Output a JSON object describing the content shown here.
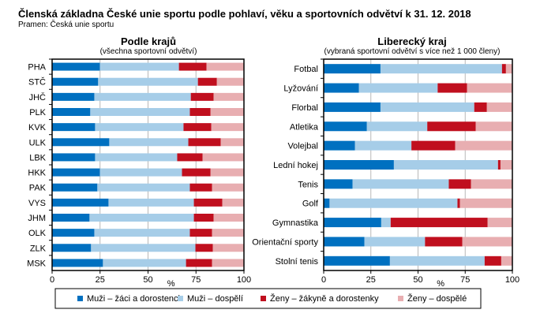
{
  "title": "Členská základna České unie sportu podle pohlaví, věku a sportovních odvětví k 31. 12. 2018",
  "source": "Pramen: Česká unie sportu",
  "colors": {
    "muzi_zaci": "#0070c0",
    "muzi_dospeli": "#a6cde8",
    "zeny_zakyne": "#c00f1e",
    "zeny_dospele": "#e8aeb1"
  },
  "legend": [
    "Muži – žáci a dorostenci",
    "Muži – dospělí",
    "Ženy – žákyně a dorostenky",
    "Ženy – dospělé"
  ],
  "chart_data": [
    {
      "type": "bar",
      "stacked": true,
      "orientation": "horizontal",
      "title": "Podle krajů",
      "subtitle": "(všechna sportovní odvětví)",
      "xlabel": "%",
      "xlim": [
        0,
        100
      ],
      "xticks": [
        "0",
        "25",
        "50",
        "75",
        "100"
      ],
      "grid": true,
      "categories": [
        "PHA",
        "STČ",
        "JHČ",
        "PLK",
        "KVK",
        "ULK",
        "LBK",
        "HKK",
        "PAK",
        "VYS",
        "JHM",
        "OLK",
        "ZLK",
        "MSK"
      ],
      "series": [
        {
          "name": "Muži – žáci a dorostenci",
          "values": [
            24.9,
            24.0,
            22.0,
            19.9,
            22.4,
            29.8,
            22.4,
            24.9,
            23.6,
            29.4,
            19.5,
            22.0,
            20.3,
            26.5
          ]
        },
        {
          "name": "Muži – dospělí",
          "values": [
            41.2,
            52.0,
            50.3,
            51.9,
            46.1,
            41.2,
            42.8,
            42.8,
            48.2,
            44.5,
            54.4,
            49.8,
            54.4,
            43.3
          ]
        },
        {
          "name": "Ženy – žákyně a dorostenky",
          "values": [
            14.4,
            9.9,
            11.9,
            10.8,
            14.5,
            16.9,
            13.2,
            14.9,
            11.6,
            14.8,
            10.3,
            11.6,
            9.1,
            13.6
          ]
        },
        {
          "name": "Ženy – dospělé",
          "values": [
            19.5,
            14.1,
            15.8,
            17.4,
            17.0,
            12.1,
            21.6,
            17.4,
            16.6,
            11.3,
            15.8,
            16.6,
            16.2,
            16.6
          ]
        }
      ]
    },
    {
      "type": "bar",
      "stacked": true,
      "orientation": "horizontal",
      "title": "Liberecký kraj",
      "subtitle": "(vybraná sportovní odvětví s více než 1 000 členy)",
      "xlabel": "%",
      "xlim": [
        0,
        100
      ],
      "xticks": [
        "0",
        "25",
        "50",
        "75",
        "100"
      ],
      "grid": true,
      "categories": [
        "Fotbal",
        "Lyžování",
        "Florbal",
        "Atletika",
        "Volejbal",
        "Lední hokej",
        "Tenis",
        "Golf",
        "Gymnastika",
        "Orientační sporty",
        "Stolní tenis"
      ],
      "series": [
        {
          "name": "Muži – žáci a dorostenci",
          "values": [
            30.1,
            18.7,
            30.1,
            22.9,
            16.6,
            37.2,
            15.3,
            3.1,
            30.5,
            21.6,
            35.1
          ]
        },
        {
          "name": "Muži – dospělí",
          "values": [
            64.4,
            41.7,
            49.7,
            32.0,
            29.9,
            55.2,
            51.0,
            67.8,
            5.0,
            32.1,
            50.2
          ]
        },
        {
          "name": "Ženy – žákyně a dorostenky",
          "values": [
            2.1,
            15.6,
            6.7,
            25.7,
            23.2,
            1.3,
            11.8,
            1.3,
            51.4,
            19.8,
            8.8
          ]
        },
        {
          "name": "Ženy – dospělé",
          "values": [
            3.4,
            24.0,
            13.5,
            19.4,
            30.3,
            6.3,
            21.9,
            27.8,
            13.1,
            26.5,
            5.9
          ]
        }
      ]
    }
  ]
}
